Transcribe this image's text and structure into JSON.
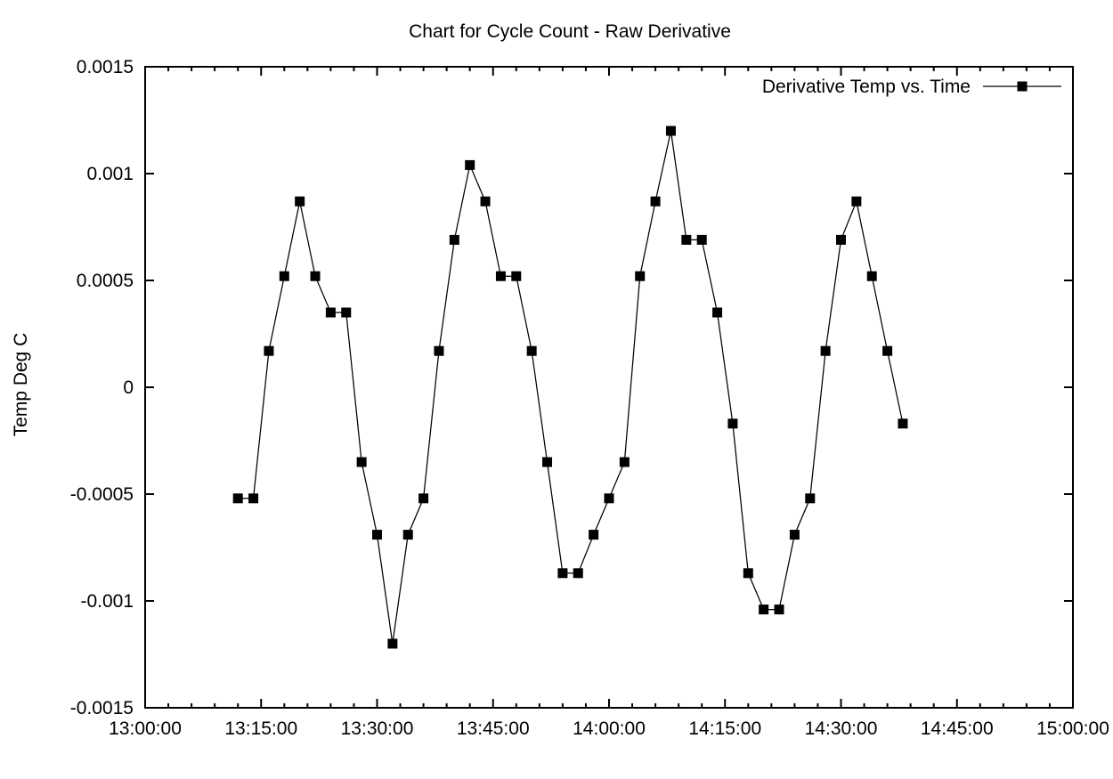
{
  "colors": {
    "background": "#ffffff",
    "foreground": "#000000",
    "series": "#000000"
  },
  "chart_data": {
    "type": "line",
    "title": "Chart for Cycle Count - Raw Derivative",
    "xlabel": "",
    "ylabel": "Temp Deg C",
    "xlim": [
      "13:00:00",
      "15:00:00"
    ],
    "ylim": [
      -0.0015,
      0.0015
    ],
    "grid": false,
    "x_tick_labels": [
      "13:00:00",
      "13:15:00",
      "13:30:00",
      "13:45:00",
      "14:00:00",
      "14:15:00",
      "14:30:00",
      "14:45:00",
      "15:00:00"
    ],
    "x_minor_tick_minutes": 3,
    "y_ticks": [
      {
        "value": -0.0015,
        "label": "-0.0015"
      },
      {
        "value": -0.001,
        "label": "-0.001"
      },
      {
        "value": -0.0005,
        "label": "-0.0005"
      },
      {
        "value": 0,
        "label": "0"
      },
      {
        "value": 0.0005,
        "label": "0.0005"
      },
      {
        "value": 0.001,
        "label": "0.001"
      },
      {
        "value": 0.0015,
        "label": "0.0015"
      }
    ],
    "legend": {
      "position": "top-right-inside",
      "entries": [
        "Derivative Temp vs. Time"
      ]
    },
    "series": [
      {
        "name": "Derivative Temp vs. Time",
        "color": "#000000",
        "marker": "filled-square",
        "x": [
          "13:12:00",
          "13:14:00",
          "13:16:00",
          "13:18:00",
          "13:20:00",
          "13:22:00",
          "13:24:00",
          "13:26:00",
          "13:28:00",
          "13:30:00",
          "13:32:00",
          "13:34:00",
          "13:36:00",
          "13:38:00",
          "13:40:00",
          "13:42:00",
          "13:44:00",
          "13:46:00",
          "13:48:00",
          "13:50:00",
          "13:52:00",
          "13:54:00",
          "13:56:00",
          "13:58:00",
          "14:00:00",
          "14:02:00",
          "14:04:00",
          "14:06:00",
          "14:08:00",
          "14:10:00",
          "14:12:00",
          "14:14:00",
          "14:16:00",
          "14:18:00",
          "14:20:00",
          "14:22:00",
          "14:24:00",
          "14:26:00",
          "14:28:00",
          "14:30:00",
          "14:32:00",
          "14:34:00",
          "14:36:00",
          "14:38:00"
        ],
        "y": [
          -0.00052,
          -0.00052,
          0.00017,
          0.00052,
          0.00087,
          0.00052,
          0.00035,
          0.00035,
          -0.00035,
          -0.00069,
          -0.0012,
          -0.00069,
          -0.00052,
          0.00017,
          0.00069,
          0.00104,
          0.00087,
          0.00052,
          0.00052,
          0.00017,
          -0.00035,
          -0.00087,
          -0.00087,
          -0.00069,
          -0.00052,
          -0.00035,
          0.00052,
          0.00087,
          0.0012,
          0.00069,
          0.00069,
          0.00035,
          -0.00017,
          -0.00087,
          -0.00104,
          -0.00104,
          -0.00069,
          -0.00052,
          0.00017,
          0.00069,
          0.00087,
          0.00052,
          0.00017,
          -0.00017
        ]
      }
    ]
  }
}
